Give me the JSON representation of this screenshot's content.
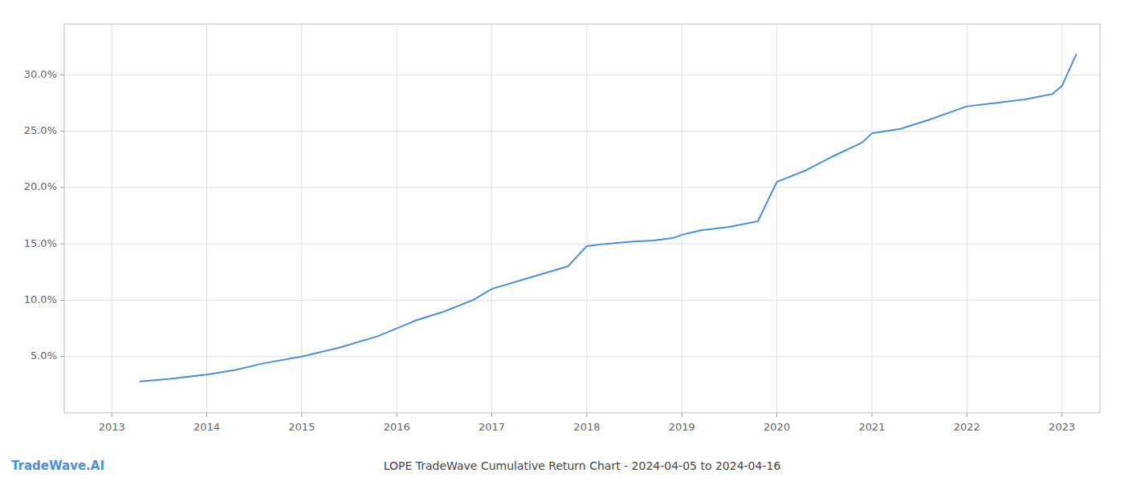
{
  "chart_data": {
    "type": "line",
    "title": "LOPE TradeWave Cumulative Return Chart - 2024-04-05 to 2024-04-16",
    "annotations": [
      "TradeWave.AI"
    ],
    "x": [
      2013.3,
      2013.6,
      2014.0,
      2014.3,
      2014.6,
      2015.0,
      2015.4,
      2015.8,
      2016.2,
      2016.5,
      2016.8,
      2017.0,
      2017.4,
      2017.8,
      2018.0,
      2018.2,
      2018.5,
      2018.7,
      2018.9,
      2019.0,
      2019.2,
      2019.5,
      2019.8,
      2020.0,
      2020.3,
      2020.6,
      2020.9,
      2021.0,
      2021.3,
      2021.6,
      2022.0,
      2022.3,
      2022.6,
      2022.9,
      2023.0,
      2023.15
    ],
    "values": [
      0.028,
      0.03,
      0.034,
      0.038,
      0.044,
      0.05,
      0.058,
      0.068,
      0.082,
      0.09,
      0.1,
      0.11,
      0.12,
      0.13,
      0.148,
      0.15,
      0.152,
      0.153,
      0.155,
      0.158,
      0.162,
      0.165,
      0.17,
      0.205,
      0.215,
      0.228,
      0.24,
      0.248,
      0.252,
      0.26,
      0.272,
      0.275,
      0.278,
      0.283,
      0.29,
      0.318
    ],
    "color": "#4a90d9",
    "xlim": [
      2012.5,
      2023.4
    ],
    "xticks": [
      2013,
      2014,
      2015,
      2016,
      2017,
      2018,
      2019,
      2020,
      2021,
      2022,
      2023
    ],
    "ylim": [
      0.0,
      0.345
    ],
    "yticks": [
      {
        "value": 0.05,
        "label": "5.0%"
      },
      {
        "value": 0.1,
        "label": "10.0%"
      },
      {
        "value": 0.15,
        "label": "15.0%"
      },
      {
        "value": 0.2,
        "label": "20.0%"
      },
      {
        "value": 0.25,
        "label": "25.0%"
      },
      {
        "value": 0.3,
        "label": "30.0%"
      }
    ],
    "grid": true
  }
}
